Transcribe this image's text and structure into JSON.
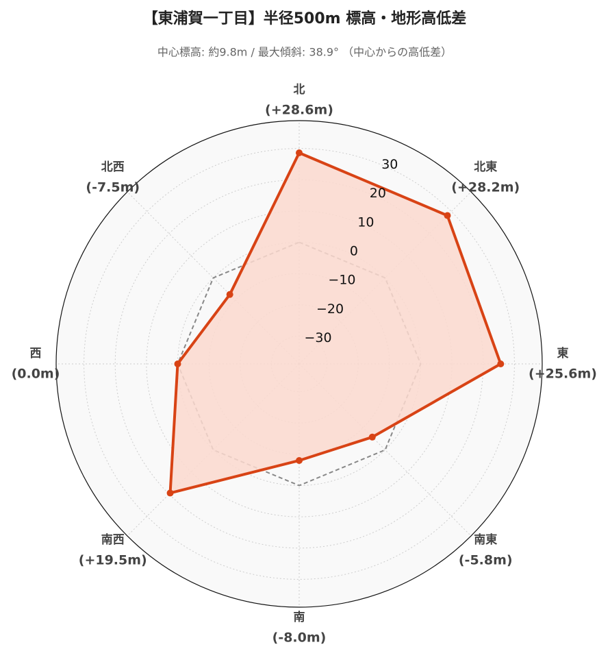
{
  "chart_data": {
    "type": "radar",
    "title": "【東浦賀一丁目】半径500m 標高・地形高低差",
    "subtitle": "中心標高: 約9.8m / 最大傾斜: 38.9° （中心からの高低差）",
    "categories": [
      "北",
      "北東",
      "東",
      "南東",
      "南",
      "南西",
      "西",
      "北西"
    ],
    "series": [
      {
        "color": "#d84315",
        "fill": "#fbd9cf",
        "values": [
          28.6,
          28.2,
          25.6,
          -5.8,
          -8.0,
          19.5,
          0.0,
          -7.5
        ],
        "value_labels": [
          "(+28.6m)",
          "(+28.2m)",
          "(+25.6m)",
          "(-5.8m)",
          "(-8.0m)",
          "(+19.5m)",
          "(0.0m)",
          "(-7.5m)"
        ]
      }
    ],
    "reference_line": 0,
    "ylim": [
      -38.9,
      38.9
    ],
    "yticks": [
      {
        "value": -30,
        "label": "−30"
      },
      {
        "value": -20,
        "label": "−20"
      },
      {
        "value": -10,
        "label": "−10"
      },
      0,
      10,
      20,
      30
    ],
    "grid": true
  }
}
